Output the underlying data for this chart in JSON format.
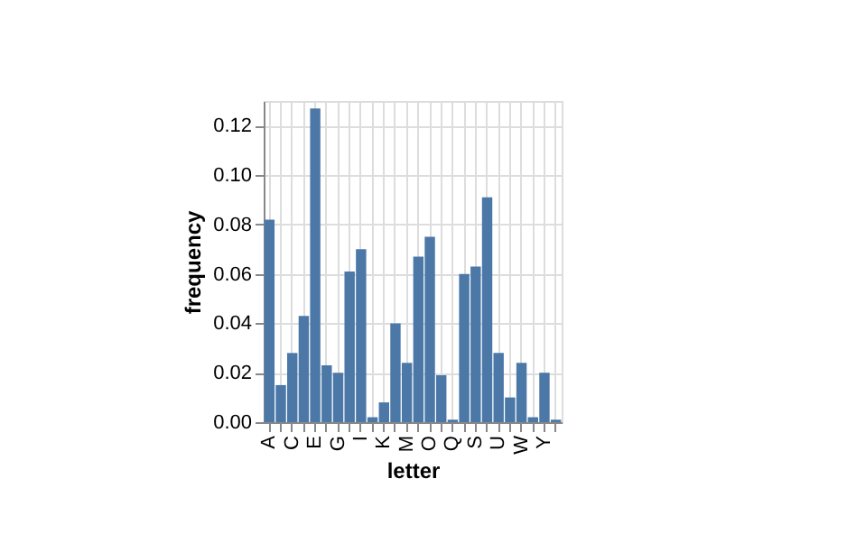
{
  "chart_data": {
    "type": "bar",
    "xlabel": "letter",
    "ylabel": "frequency",
    "categories": [
      "A",
      null,
      "C",
      null,
      "E",
      null,
      "G",
      null,
      "I",
      null,
      "K",
      null,
      "M",
      null,
      "O",
      null,
      "Q",
      null,
      "S",
      null,
      "U",
      null,
      "W",
      null,
      "Y",
      null
    ],
    "values": [
      0.082,
      0.015,
      0.028,
      0.043,
      0.127,
      0.023,
      0.02,
      0.061,
      0.07,
      0.002,
      0.008,
      0.04,
      0.024,
      0.067,
      0.075,
      0.019,
      0.001,
      0.06,
      0.063,
      0.091,
      0.028,
      0.01,
      0.024,
      0.002,
      0.02,
      0.001
    ],
    "color": "#4c78a8",
    "ylim": [
      0,
      0.13
    ],
    "yticks": [
      {
        "value": 0,
        "label": "0.00"
      },
      {
        "value": 0.02,
        "label": "0.02"
      },
      {
        "value": 0.04,
        "label": "0.04"
      },
      {
        "value": 0.06,
        "label": "0.06"
      },
      {
        "value": 0.08,
        "label": "0.08"
      },
      {
        "value": 0.1,
        "label": "0.10"
      },
      {
        "value": 0.12,
        "label": "0.12"
      }
    ],
    "grid": true
  }
}
